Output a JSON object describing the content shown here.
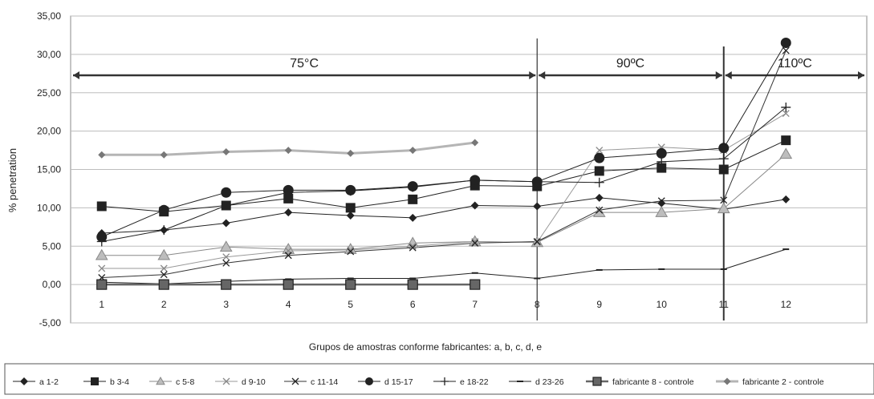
{
  "chart_data": {
    "type": "line",
    "xlabel": "Grupos de amostras conforme fabricantes: a, b, c, d, e",
    "ylabel": "% penetration",
    "categories": [
      "1",
      "2",
      "3",
      "4",
      "5",
      "6",
      "7",
      "8",
      "9",
      "10",
      "11",
      "12"
    ],
    "ylim": [
      -5,
      35
    ],
    "yticks": [
      "-5,00",
      "0,00",
      "5,00",
      "10,00",
      "15,00",
      "20,00",
      "25,00",
      "30,00",
      "35,00"
    ],
    "grid": true,
    "legend_position": "bottom",
    "regions": [
      {
        "label": "75°C",
        "from": 1,
        "to": 8
      },
      {
        "label": "90ºC",
        "from": 8,
        "to": 11
      },
      {
        "label": "110ºC",
        "from": 11,
        "to": 12
      }
    ],
    "series": [
      {
        "name": "a 1-2",
        "values": [
          6.7,
          7.1,
          8.0,
          9.4,
          9.0,
          8.7,
          10.3,
          10.2,
          11.3,
          10.6,
          9.8,
          11.1
        ]
      },
      {
        "name": "b 3-4",
        "values": [
          10.2,
          9.5,
          10.3,
          11.2,
          10.0,
          11.1,
          12.9,
          12.8,
          14.8,
          15.2,
          15.0,
          18.8
        ]
      },
      {
        "name": "c 5-8",
        "values": [
          3.8,
          3.8,
          4.9,
          4.6,
          4.6,
          5.4,
          5.6,
          5.5,
          9.4,
          9.4,
          9.9,
          17.0
        ]
      },
      {
        "name": "d 9-10",
        "values": [
          2.1,
          2.1,
          3.6,
          4.4,
          4.5,
          5.0,
          5.6,
          5.5,
          17.5,
          17.9,
          17.5,
          22.3
        ]
      },
      {
        "name": "c 11-14",
        "values": [
          0.9,
          1.3,
          2.8,
          3.8,
          4.3,
          4.8,
          5.4,
          5.6,
          9.7,
          10.9,
          11.0,
          30.5
        ]
      },
      {
        "name": "d 15-17",
        "values": [
          6.2,
          9.7,
          12.0,
          12.3,
          12.3,
          12.8,
          13.6,
          13.4,
          16.5,
          17.1,
          17.8,
          31.5
        ]
      },
      {
        "name": "e 18-22",
        "values": [
          5.6,
          7.1,
          10.3,
          12.0,
          12.2,
          12.7,
          13.6,
          13.4,
          13.3,
          16.0,
          16.4,
          23.1
        ]
      },
      {
        "name": "d 23-26",
        "values": [
          0.3,
          0.1,
          0.4,
          0.7,
          0.8,
          0.8,
          1.5,
          0.8,
          1.9,
          2.0,
          2.0,
          4.6
        ]
      },
      {
        "name": "fabricante 8 - controle",
        "values": [
          0.0,
          0.0,
          0.0,
          0.0,
          0.0,
          0.0,
          0.0,
          null,
          null,
          null,
          null,
          null
        ]
      },
      {
        "name": "fabricante 2 - controle",
        "values": [
          16.9,
          16.9,
          17.3,
          17.5,
          17.1,
          17.5,
          18.5,
          null,
          null,
          null,
          null,
          null
        ]
      }
    ]
  }
}
